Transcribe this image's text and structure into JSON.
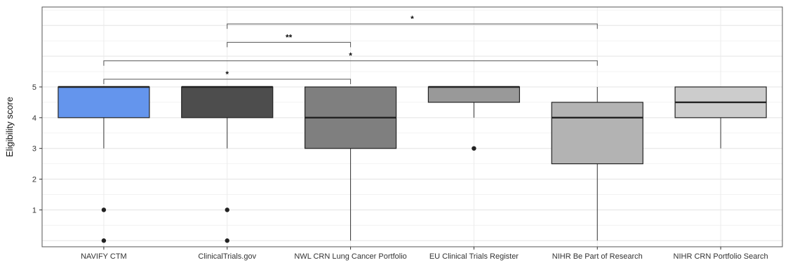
{
  "chart_data": {
    "type": "box",
    "title": "",
    "xlabel": "",
    "ylabel": "Eligibility score",
    "ylim": [
      -0.2,
      7.6
    ],
    "y_ticks": [
      1,
      2,
      3,
      4,
      5
    ],
    "grid": true,
    "categories": [
      "NAVIFY CTM",
      "ClinicalTrials.gov",
      "NWL CRN Lung Cancer Portfolio",
      "EU Clinical Trials Register",
      "NIHR Be Part of Research",
      "NIHR CRN Portfolio Search"
    ],
    "boxes": [
      {
        "category": "NAVIFY CTM",
        "q1": 4,
        "median": 5,
        "q3": 5,
        "whisker_low": 3,
        "whisker_high": 5,
        "outliers": [
          1,
          0
        ],
        "color": "#6495ED"
      },
      {
        "category": "ClinicalTrials.gov",
        "q1": 4,
        "median": 5,
        "q3": 5,
        "whisker_low": 3,
        "whisker_high": 5,
        "outliers": [
          1,
          0
        ],
        "color": "#4D4D4D"
      },
      {
        "category": "NWL CRN Lung Cancer Portfolio",
        "q1": 3,
        "median": 4,
        "q3": 5,
        "whisker_low": 0,
        "whisker_high": 5,
        "outliers": [],
        "color": "#7F7F7F"
      },
      {
        "category": "EU Clinical Trials Register",
        "q1": 4.5,
        "median": 5,
        "q3": 5,
        "whisker_low": 4,
        "whisker_high": 5,
        "outliers": [
          3
        ],
        "color": "#999999"
      },
      {
        "category": "NIHR Be Part of Research",
        "q1": 2.5,
        "median": 4,
        "q3": 4.5,
        "whisker_low": 0,
        "whisker_high": 5,
        "outliers": [],
        "color": "#B3B3B3"
      },
      {
        "category": "NIHR CRN Portfolio Search",
        "q1": 4,
        "median": 4.5,
        "q3": 5,
        "whisker_low": 3,
        "whisker_high": 5,
        "outliers": [],
        "color": "#CCCCCC"
      }
    ],
    "significance": [
      {
        "from": "NAVIFY CTM",
        "to": "NWL CRN Lung Cancer Portfolio",
        "label": "*",
        "y": 5.25
      },
      {
        "from": "NAVIFY CTM",
        "to": "NIHR Be Part of Research",
        "label": "*",
        "y": 5.85
      },
      {
        "from": "ClinicalTrials.gov",
        "to": "NWL CRN Lung Cancer Portfolio",
        "label": "**",
        "y": 6.45
      },
      {
        "from": "ClinicalTrials.gov",
        "to": "NIHR Be Part of Research",
        "label": "*",
        "y": 7.05
      }
    ]
  }
}
